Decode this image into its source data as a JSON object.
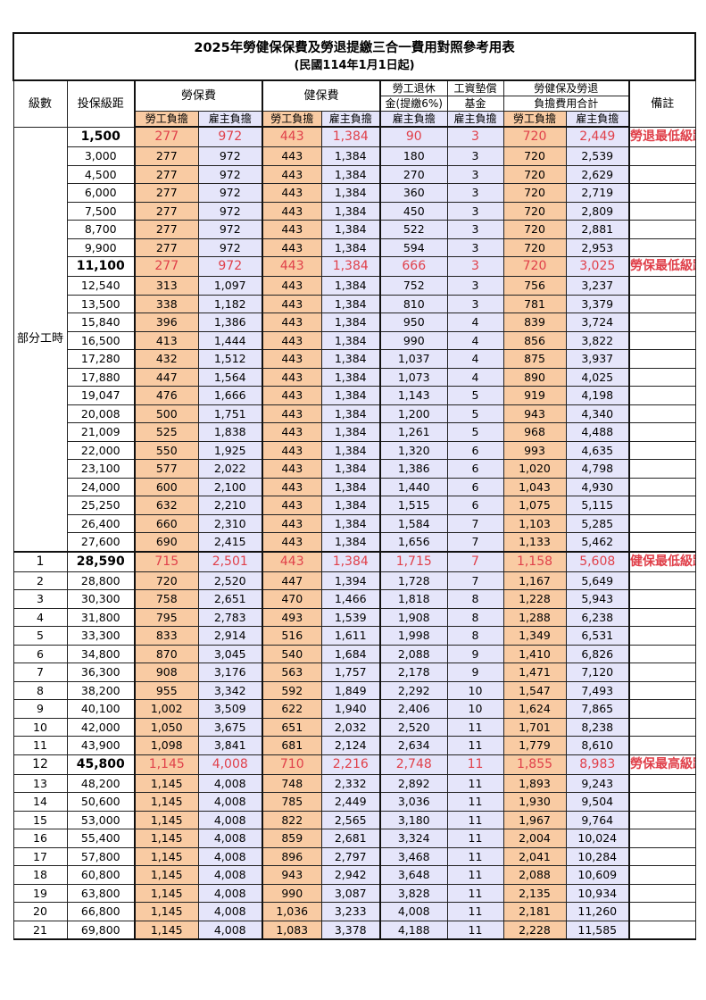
{
  "title": "2025年勞健保保費及勞退提繳三合一費用對照參考用表",
  "subtitle": "(民國114年1月1日起)",
  "headers": {
    "level": "級數",
    "salary": "投保級距",
    "labor": "勞保費",
    "health": "健保費",
    "pension_1": "勞工退休",
    "pension_2": "金(提繳6%)",
    "wage_1": "工資墊償",
    "wage_2": "基金",
    "total_1": "勞健保及勞退",
    "total_2": "負擔費用合計",
    "note": "備註",
    "worker": "勞工負擔",
    "employer": "雇主負擔"
  },
  "part_time_label": "部分工時",
  "colors": {
    "worker_bg": "#f9cba3",
    "employer_bg": "#e5e5fa",
    "highlight_text": "#e0404a"
  },
  "rows": [
    [
      "",
      "1,500",
      "277",
      "972",
      "443",
      "1,384",
      "90",
      "3",
      "720",
      "2,449",
      "勞退最低級距",
      true
    ],
    [
      "",
      "3,000",
      "277",
      "972",
      "443",
      "1,384",
      "180",
      "3",
      "720",
      "2,539",
      "",
      false
    ],
    [
      "",
      "4,500",
      "277",
      "972",
      "443",
      "1,384",
      "270",
      "3",
      "720",
      "2,629",
      "",
      false
    ],
    [
      "",
      "6,000",
      "277",
      "972",
      "443",
      "1,384",
      "360",
      "3",
      "720",
      "2,719",
      "",
      false
    ],
    [
      "",
      "7,500",
      "277",
      "972",
      "443",
      "1,384",
      "450",
      "3",
      "720",
      "2,809",
      "",
      false
    ],
    [
      "",
      "8,700",
      "277",
      "972",
      "443",
      "1,384",
      "522",
      "3",
      "720",
      "2,881",
      "",
      false
    ],
    [
      "",
      "9,900",
      "277",
      "972",
      "443",
      "1,384",
      "594",
      "3",
      "720",
      "2,953",
      "",
      false
    ],
    [
      "",
      "11,100",
      "277",
      "972",
      "443",
      "1,384",
      "666",
      "3",
      "720",
      "3,025",
      "勞保最低級距",
      true
    ],
    [
      "",
      "12,540",
      "313",
      "1,097",
      "443",
      "1,384",
      "752",
      "3",
      "756",
      "3,237",
      "",
      false
    ],
    [
      "",
      "13,500",
      "338",
      "1,182",
      "443",
      "1,384",
      "810",
      "3",
      "781",
      "3,379",
      "",
      false
    ],
    [
      "",
      "15,840",
      "396",
      "1,386",
      "443",
      "1,384",
      "950",
      "4",
      "839",
      "3,724",
      "",
      false
    ],
    [
      "",
      "16,500",
      "413",
      "1,444",
      "443",
      "1,384",
      "990",
      "4",
      "856",
      "3,822",
      "",
      false
    ],
    [
      "",
      "17,280",
      "432",
      "1,512",
      "443",
      "1,384",
      "1,037",
      "4",
      "875",
      "3,937",
      "",
      false
    ],
    [
      "",
      "17,880",
      "447",
      "1,564",
      "443",
      "1,384",
      "1,073",
      "4",
      "890",
      "4,025",
      "",
      false
    ],
    [
      "",
      "19,047",
      "476",
      "1,666",
      "443",
      "1,384",
      "1,143",
      "5",
      "919",
      "4,198",
      "",
      false
    ],
    [
      "",
      "20,008",
      "500",
      "1,751",
      "443",
      "1,384",
      "1,200",
      "5",
      "943",
      "4,340",
      "",
      false
    ],
    [
      "",
      "21,009",
      "525",
      "1,838",
      "443",
      "1,384",
      "1,261",
      "5",
      "968",
      "4,488",
      "",
      false
    ],
    [
      "",
      "22,000",
      "550",
      "1,925",
      "443",
      "1,384",
      "1,320",
      "6",
      "993",
      "4,635",
      "",
      false
    ],
    [
      "",
      "23,100",
      "577",
      "2,022",
      "443",
      "1,384",
      "1,386",
      "6",
      "1,020",
      "4,798",
      "",
      false
    ],
    [
      "",
      "24,000",
      "600",
      "2,100",
      "443",
      "1,384",
      "1,440",
      "6",
      "1,043",
      "4,930",
      "",
      false
    ],
    [
      "",
      "25,250",
      "632",
      "2,210",
      "443",
      "1,384",
      "1,515",
      "6",
      "1,075",
      "5,115",
      "",
      false
    ],
    [
      "",
      "26,400",
      "660",
      "2,310",
      "443",
      "1,384",
      "1,584",
      "7",
      "1,103",
      "5,285",
      "",
      false
    ],
    [
      "",
      "27,600",
      "690",
      "2,415",
      "443",
      "1,384",
      "1,656",
      "7",
      "1,133",
      "5,462",
      "",
      false
    ],
    [
      "1",
      "28,590",
      "715",
      "2,501",
      "443",
      "1,384",
      "1,715",
      "7",
      "1,158",
      "5,608",
      "健保最低級距",
      true
    ],
    [
      "2",
      "28,800",
      "720",
      "2,520",
      "447",
      "1,394",
      "1,728",
      "7",
      "1,167",
      "5,649",
      "",
      false
    ],
    [
      "3",
      "30,300",
      "758",
      "2,651",
      "470",
      "1,466",
      "1,818",
      "8",
      "1,228",
      "5,943",
      "",
      false
    ],
    [
      "4",
      "31,800",
      "795",
      "2,783",
      "493",
      "1,539",
      "1,908",
      "8",
      "1,288",
      "6,238",
      "",
      false
    ],
    [
      "5",
      "33,300",
      "833",
      "2,914",
      "516",
      "1,611",
      "1,998",
      "8",
      "1,349",
      "6,531",
      "",
      false
    ],
    [
      "6",
      "34,800",
      "870",
      "3,045",
      "540",
      "1,684",
      "2,088",
      "9",
      "1,410",
      "6,826",
      "",
      false
    ],
    [
      "7",
      "36,300",
      "908",
      "3,176",
      "563",
      "1,757",
      "2,178",
      "9",
      "1,471",
      "7,120",
      "",
      false
    ],
    [
      "8",
      "38,200",
      "955",
      "3,342",
      "592",
      "1,849",
      "2,292",
      "10",
      "1,547",
      "7,493",
      "",
      false
    ],
    [
      "9",
      "40,100",
      "1,002",
      "3,509",
      "622",
      "1,940",
      "2,406",
      "10",
      "1,624",
      "7,865",
      "",
      false
    ],
    [
      "10",
      "42,000",
      "1,050",
      "3,675",
      "651",
      "2,032",
      "2,520",
      "11",
      "1,701",
      "8,238",
      "",
      false
    ],
    [
      "11",
      "43,900",
      "1,098",
      "3,841",
      "681",
      "2,124",
      "2,634",
      "11",
      "1,779",
      "8,610",
      "",
      false
    ],
    [
      "12",
      "45,800",
      "1,145",
      "4,008",
      "710",
      "2,216",
      "2,748",
      "11",
      "1,855",
      "8,983",
      "勞保最高級距",
      true
    ],
    [
      "13",
      "48,200",
      "1,145",
      "4,008",
      "748",
      "2,332",
      "2,892",
      "11",
      "1,893",
      "9,243",
      "",
      false
    ],
    [
      "14",
      "50,600",
      "1,145",
      "4,008",
      "785",
      "2,449",
      "3,036",
      "11",
      "1,930",
      "9,504",
      "",
      false
    ],
    [
      "15",
      "53,000",
      "1,145",
      "4,008",
      "822",
      "2,565",
      "3,180",
      "11",
      "1,967",
      "9,764",
      "",
      false
    ],
    [
      "16",
      "55,400",
      "1,145",
      "4,008",
      "859",
      "2,681",
      "3,324",
      "11",
      "2,004",
      "10,024",
      "",
      false
    ],
    [
      "17",
      "57,800",
      "1,145",
      "4,008",
      "896",
      "2,797",
      "3,468",
      "11",
      "2,041",
      "10,284",
      "",
      false
    ],
    [
      "18",
      "60,800",
      "1,145",
      "4,008",
      "943",
      "2,942",
      "3,648",
      "11",
      "2,088",
      "10,609",
      "",
      false
    ],
    [
      "19",
      "63,800",
      "1,145",
      "4,008",
      "990",
      "3,087",
      "3,828",
      "11",
      "2,135",
      "10,934",
      "",
      false
    ],
    [
      "20",
      "66,800",
      "1,145",
      "4,008",
      "1,036",
      "3,233",
      "4,008",
      "11",
      "2,181",
      "11,260",
      "",
      false
    ],
    [
      "21",
      "69,800",
      "1,145",
      "4,008",
      "1,083",
      "3,378",
      "4,188",
      "11",
      "2,228",
      "11,585",
      "",
      false
    ]
  ]
}
